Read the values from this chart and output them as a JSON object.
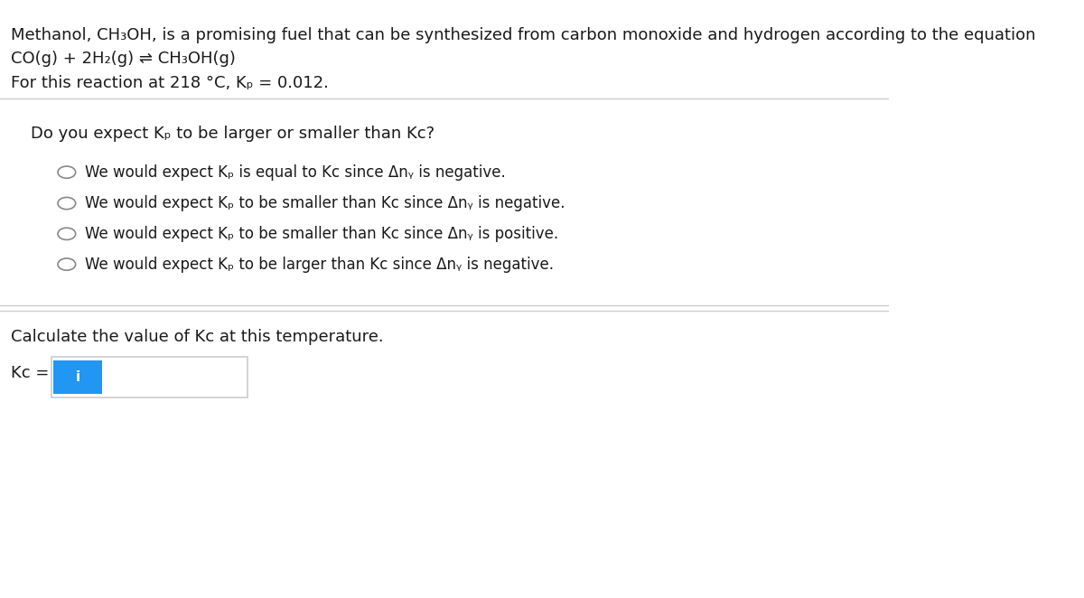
{
  "background_color": "#ffffff",
  "text_color": "#1a1a1a",
  "title_line1": "Methanol, CH₃OH, is a promising fuel that can be synthesized from carbon monoxide and hydrogen according to the equation",
  "title_line2": "CO(g) + 2H₂(g) ⇌ CH₃OH(g)",
  "title_line3": "For this reaction at 218 °C, Kₚ = 0.012.",
  "question": "Do you expect Kₚ to be larger or smaller than Kᴄ?",
  "options": [
    "We would expect Kₚ is equal to Kᴄ since Δnᵧ is negative.",
    "We would expect Kₚ to be smaller than Kᴄ since Δnᵧ is negative.",
    "We would expect Kₚ to be smaller than Kᴄ since Δnᵧ is positive.",
    "We would expect Kₚ to be larger than Kᴄ since Δnᵧ is negative."
  ],
  "calc_label": "Calculate the value of Kᴄ at this temperature.",
  "kc_label": "Kᴄ =",
  "separator_color": "#cccccc",
  "radio_color": "#888888",
  "input_border_color": "#2196F3",
  "info_icon_color": "#2196F3",
  "font_size_title": 13,
  "font_size_question": 13,
  "font_size_options": 12,
  "font_size_calc": 13,
  "font_size_kc": 13
}
